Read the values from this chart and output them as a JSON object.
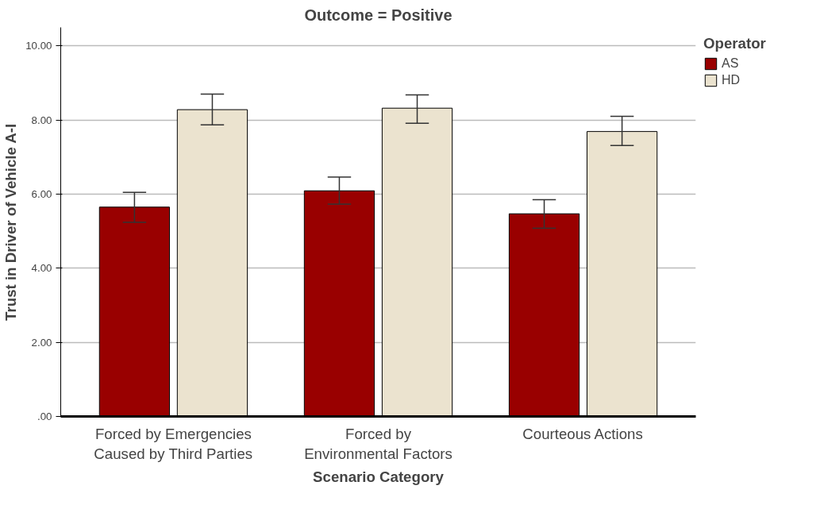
{
  "chart_data": {
    "type": "bar",
    "title": "Outcome = Positive",
    "xlabel": "Scenario Category",
    "ylabel": "Trust in Driver of Vehicle A-I",
    "legend_title": "Operator",
    "categories": [
      "Forced by Emergencies\nCaused by Third Parties",
      "Forced by\nEnvironmental Factors",
      "Courteous Actions"
    ],
    "series": [
      {
        "name": "AS",
        "color": "#990000",
        "values": [
          5.65,
          6.09,
          5.47
        ],
        "errors": [
          [
            5.24,
            6.05
          ],
          [
            5.73,
            6.46
          ],
          [
            5.08,
            5.85
          ]
        ]
      },
      {
        "name": "HD",
        "color": "#ebe3cf",
        "values": [
          8.28,
          8.32,
          7.69
        ],
        "errors": [
          [
            7.87,
            8.7
          ],
          [
            7.91,
            8.68
          ],
          [
            7.31,
            8.1
          ]
        ]
      }
    ],
    "ylim": [
      0,
      10.5
    ],
    "yticks": [
      {
        "value": 0,
        "label": ".00"
      },
      {
        "value": 2,
        "label": "2.00"
      },
      {
        "value": 4,
        "label": "4.00"
      },
      {
        "value": 6,
        "label": "6.00"
      },
      {
        "value": 8,
        "label": "8.00"
      },
      {
        "value": 10,
        "label": "10.00"
      }
    ],
    "grid": "y",
    "legend": "right"
  }
}
